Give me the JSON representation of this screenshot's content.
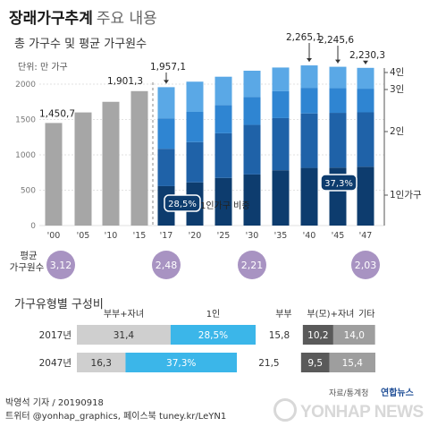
{
  "title": {
    "bold": "장래가구추계",
    "light": "주요 내용"
  },
  "section1_title": "총 가구수 및 평균 가구원수",
  "unit_label": "단위: 만 가구",
  "ratio_label": "1인가구 비중",
  "avg_label_line1": "평균",
  "avg_label_line2": "가구원수",
  "section2_title": "가구유형별 구성비",
  "colors": {
    "gray_bar": "#a6a6a6",
    "one_person": "#0d3c6e",
    "two_person": "#1f62a8",
    "three_person": "#2f85d2",
    "four_person": "#5aa8e6",
    "bubble": "#a893c2",
    "sky": "#3bb6e9"
  },
  "chart_data": [
    {
      "type": "bar",
      "title": "총 가구수 및 평균 가구원수",
      "unit": "단위: 만 가구",
      "categories": [
        "'00",
        "'05",
        "'10",
        "'15",
        "'17",
        "'20",
        "'25",
        "'30",
        "'35",
        "'40",
        "'45",
        "'47"
      ],
      "y_ticks": [
        0,
        500,
        1000,
        1500,
        2000
      ],
      "ylim": [
        0,
        2000
      ],
      "total_households": [
        1450.7,
        1600,
        1750,
        1901.3,
        1957.1,
        2035,
        2105,
        2190,
        2235,
        2265.1,
        2245.6,
        2230.3
      ],
      "value_labels": [
        {
          "category": "'00",
          "label": "1,450,7"
        },
        {
          "category": "'15",
          "label": "1,901,3"
        },
        {
          "category": "'17",
          "label": "1,957,1"
        },
        {
          "category": "'40",
          "label": "2,265,1"
        },
        {
          "category": "'45",
          "label": "2,245,6"
        },
        {
          "category": "'47",
          "label": "2,230,3"
        }
      ],
      "series_names": [
        "1인가구",
        "2인",
        "3인",
        "4인"
      ],
      "one_person_share_labels": [
        {
          "category": "'17",
          "label": "28,5%"
        },
        {
          "category": "'47",
          "label": "37,3%"
        }
      ],
      "average_household_size": [
        {
          "category": "'00",
          "label": "3,12"
        },
        {
          "category": "'17",
          "label": "2,48"
        },
        {
          "category": "'30",
          "label": "2,21"
        },
        {
          "category": "'47",
          "label": "2,03"
        }
      ]
    },
    {
      "type": "bar",
      "stacked": "horizontal-100%",
      "title": "가구유형별 구성비",
      "segment_headers": [
        "부부+자녀",
        "1인",
        "부부",
        "부(모)+자녀",
        "기타"
      ],
      "rows": [
        {
          "year": "2017년",
          "values": [
            31.4,
            28.5,
            15.8,
            10.2,
            14.0
          ],
          "labels": [
            "31,4",
            "28,5%",
            "15,8",
            "10,2",
            "14,0"
          ]
        },
        {
          "year": "2047년",
          "values": [
            16.3,
            37.3,
            21.5,
            9.5,
            15.4
          ],
          "labels": [
            "16,3",
            "37,3%",
            "21,5",
            "9,5",
            "15,4"
          ]
        }
      ]
    }
  ],
  "footer": {
    "byline": "박영석 기자 / 20190918",
    "twitter": "트위터 @yonhap_graphics, 페이스북 tuney.kr/LeYN1",
    "source": "자료/통계청",
    "yonhap_small": "연합뉴스",
    "yonhap_logo": "YONHAP NEWS"
  }
}
